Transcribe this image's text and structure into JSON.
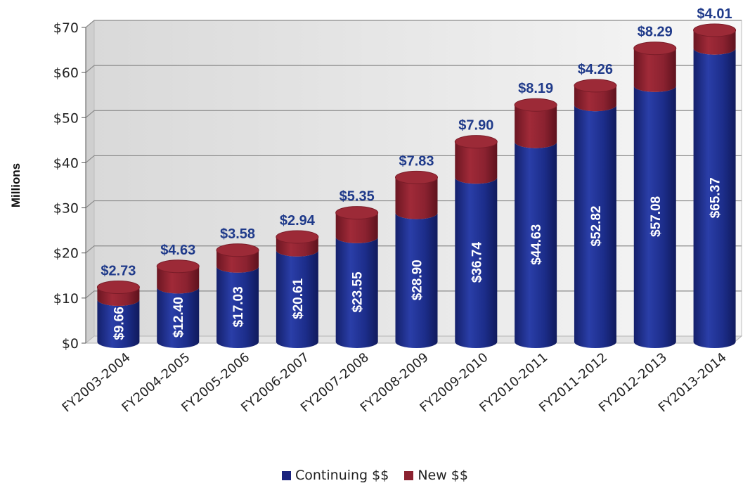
{
  "chart_data": {
    "type": "bar",
    "stacked": true,
    "title": "",
    "xlabel": "",
    "ylabel": "Millions",
    "ylim": [
      0,
      70
    ],
    "yticks": [
      "$0",
      "$10",
      "$20",
      "$30",
      "$40",
      "$50",
      "$60",
      "$70"
    ],
    "grid": true,
    "legend_position": "bottom",
    "categories": [
      "FY2003-2004",
      "FY2004-2005",
      "FY2005-2006",
      "FY2006-2007",
      "FY2007-2008",
      "FY2008-2009",
      "FY2009-2010",
      "FY2010-2011",
      "FY2011-2012",
      "FY2012-2013",
      "FY2013-2014"
    ],
    "series": [
      {
        "name": "Continuing $$",
        "color": "#1f3a93",
        "values": [
          9.66,
          12.4,
          17.03,
          20.61,
          23.55,
          28.9,
          36.74,
          44.63,
          52.82,
          57.08,
          65.37
        ],
        "labels": [
          "$9.66",
          "$12.40",
          "$17.03",
          "$20.61",
          "$23.55",
          "$28.90",
          "$36.74",
          "$44.63",
          "$52.82",
          "$57.08",
          "$65.37"
        ]
      },
      {
        "name": "New $$",
        "color": "#8b2230",
        "values": [
          2.73,
          4.63,
          3.58,
          2.94,
          5.35,
          7.83,
          7.9,
          8.19,
          4.26,
          8.29,
          4.01
        ],
        "labels": [
          "$2.73",
          "$4.63",
          "$3.58",
          "$2.94",
          "$5.35",
          "$7.83",
          "$7.90",
          "$8.19",
          "$4.26",
          "$8.29",
          "$4.01"
        ]
      }
    ]
  }
}
